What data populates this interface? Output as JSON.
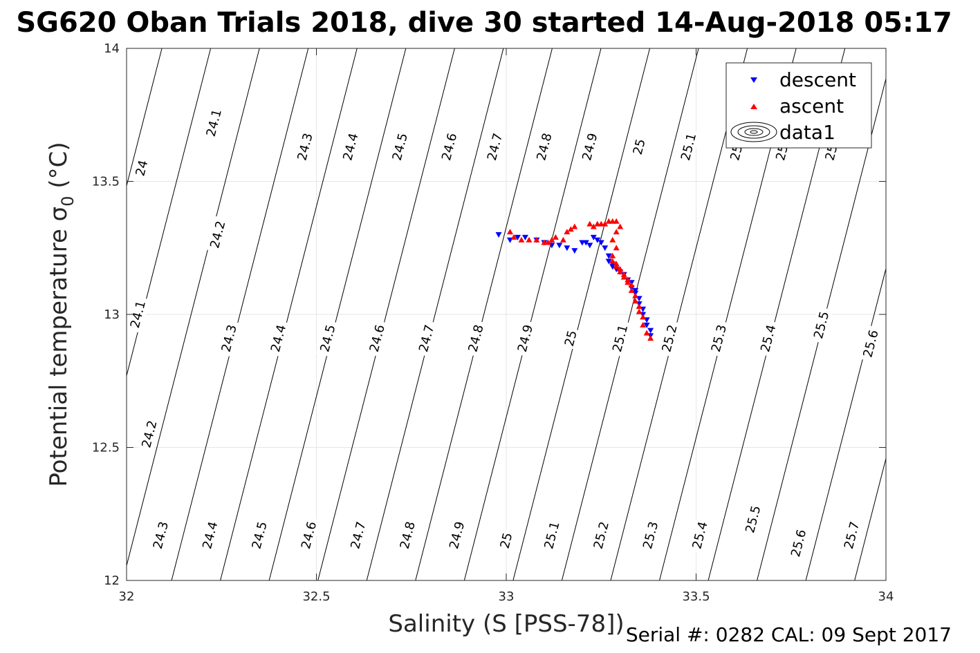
{
  "chart_data": {
    "type": "scatter",
    "title": "SG620 Oban Trials 2018, dive 30 started 14-Aug-2018 05:17",
    "xlabel": "Salinity (S [PSS-78])",
    "ylabel": "Potential temperature",
    "ylabel_symbol": "σ",
    "ylabel_subscript": "0",
    "ylabel_unit": "(°C)",
    "xlim": [
      32,
      34
    ],
    "ylim": [
      12,
      14
    ],
    "xticks": [
      "32",
      "32.5",
      "33",
      "33.5",
      "34"
    ],
    "yticks": [
      "12",
      "12.5",
      "13",
      "13.5",
      "14"
    ],
    "grid": true,
    "legend_position": "top-right",
    "series": [
      {
        "name": "descent",
        "marker": "triangle-down",
        "color": "#0000ff",
        "x": [
          32.98,
          33.01,
          33.03,
          33.05,
          33.08,
          33.1,
          33.12,
          33.14,
          33.16,
          33.18,
          33.2,
          33.21,
          33.22,
          33.23,
          33.24,
          33.25,
          33.26,
          33.27,
          33.27,
          33.28,
          33.28,
          33.29,
          33.3,
          33.31,
          33.32,
          33.33,
          33.33,
          33.34,
          33.34,
          33.35,
          33.35,
          33.36,
          33.36,
          33.37,
          33.37,
          33.38,
          33.38
        ],
        "y": [
          13.3,
          13.28,
          13.29,
          13.29,
          13.28,
          13.27,
          13.26,
          13.26,
          13.25,
          13.24,
          13.27,
          13.27,
          13.26,
          13.29,
          13.28,
          13.27,
          13.25,
          13.22,
          13.2,
          13.19,
          13.18,
          13.17,
          13.16,
          13.15,
          13.13,
          13.12,
          13.1,
          13.09,
          13.08,
          13.06,
          13.04,
          13.02,
          13.0,
          12.98,
          12.96,
          12.94,
          12.92
        ]
      },
      {
        "name": "ascent",
        "marker": "triangle-up",
        "color": "#ff0000",
        "x": [
          33.38,
          33.37,
          33.36,
          33.36,
          33.35,
          33.35,
          33.34,
          33.34,
          33.33,
          33.33,
          33.32,
          33.32,
          33.31,
          33.31,
          33.3,
          33.3,
          33.29,
          33.29,
          33.28,
          33.28,
          33.29,
          33.28,
          33.29,
          33.3,
          33.29,
          33.28,
          33.27,
          33.26,
          33.25,
          33.24,
          33.23,
          33.22,
          33.18,
          33.17,
          33.16,
          33.15,
          33.13,
          33.12,
          33.11,
          33.1,
          33.08,
          33.06,
          33.04,
          33.02,
          33.01
        ],
        "y": [
          12.91,
          12.93,
          12.96,
          12.99,
          13.01,
          13.03,
          13.05,
          13.07,
          13.09,
          13.11,
          13.12,
          13.13,
          13.14,
          13.15,
          13.16,
          13.17,
          13.18,
          13.19,
          13.2,
          13.22,
          13.25,
          13.28,
          13.31,
          13.33,
          13.35,
          13.35,
          13.35,
          13.34,
          13.34,
          13.34,
          13.33,
          13.34,
          13.33,
          13.32,
          13.31,
          13.28,
          13.29,
          13.28,
          13.27,
          13.27,
          13.28,
          13.28,
          13.28,
          13.29,
          13.31
        ]
      }
    ],
    "contour_series_name": "data1",
    "contour_labels": [
      {
        "text": "24",
        "x": 32.04,
        "y": 13.55
      },
      {
        "text": "24.1",
        "x": 32.23,
        "y": 13.72
      },
      {
        "text": "24.3",
        "x": 32.47,
        "y": 13.63
      },
      {
        "text": "24.4",
        "x": 32.59,
        "y": 13.63
      },
      {
        "text": "24.5",
        "x": 32.72,
        "y": 13.63
      },
      {
        "text": "24.6",
        "x": 32.85,
        "y": 13.63
      },
      {
        "text": "24.7",
        "x": 32.97,
        "y": 13.63
      },
      {
        "text": "24.8",
        "x": 33.1,
        "y": 13.63
      },
      {
        "text": "24.9",
        "x": 33.22,
        "y": 13.63
      },
      {
        "text": "25",
        "x": 33.35,
        "y": 13.63
      },
      {
        "text": "25.1",
        "x": 33.48,
        "y": 13.63
      },
      {
        "text": "25.2",
        "x": 33.61,
        "y": 13.63
      },
      {
        "text": "25.3",
        "x": 33.73,
        "y": 13.63
      },
      {
        "text": "25.4",
        "x": 33.86,
        "y": 13.63
      },
      {
        "text": "24.2",
        "x": 32.24,
        "y": 13.3
      },
      {
        "text": "24.1",
        "x": 32.03,
        "y": 13.0
      },
      {
        "text": "24.3",
        "x": 32.27,
        "y": 12.91
      },
      {
        "text": "24.4",
        "x": 32.4,
        "y": 12.91
      },
      {
        "text": "24.5",
        "x": 32.53,
        "y": 12.91
      },
      {
        "text": "24.6",
        "x": 32.66,
        "y": 12.91
      },
      {
        "text": "24.7",
        "x": 32.79,
        "y": 12.91
      },
      {
        "text": "24.8",
        "x": 32.92,
        "y": 12.91
      },
      {
        "text": "24.9",
        "x": 33.05,
        "y": 12.91
      },
      {
        "text": "25",
        "x": 33.17,
        "y": 12.91
      },
      {
        "text": "25.1",
        "x": 33.3,
        "y": 12.91
      },
      {
        "text": "25.2",
        "x": 33.43,
        "y": 12.91
      },
      {
        "text": "25.3",
        "x": 33.56,
        "y": 12.91
      },
      {
        "text": "25.4",
        "x": 33.69,
        "y": 12.91
      },
      {
        "text": "25.5",
        "x": 33.83,
        "y": 12.96
      },
      {
        "text": "25.6",
        "x": 33.96,
        "y": 12.89
      },
      {
        "text": "24.2",
        "x": 32.06,
        "y": 12.55
      },
      {
        "text": "24.3",
        "x": 32.09,
        "y": 12.17
      },
      {
        "text": "24.4",
        "x": 32.22,
        "y": 12.17
      },
      {
        "text": "24.5",
        "x": 32.35,
        "y": 12.17
      },
      {
        "text": "24.6",
        "x": 32.48,
        "y": 12.17
      },
      {
        "text": "24.7",
        "x": 32.61,
        "y": 12.17
      },
      {
        "text": "24.8",
        "x": 32.74,
        "y": 12.17
      },
      {
        "text": "24.9",
        "x": 32.87,
        "y": 12.17
      },
      {
        "text": "25",
        "x": 33.0,
        "y": 12.15
      },
      {
        "text": "25.1",
        "x": 33.12,
        "y": 12.17
      },
      {
        "text": "25.2",
        "x": 33.25,
        "y": 12.17
      },
      {
        "text": "25.3",
        "x": 33.38,
        "y": 12.17
      },
      {
        "text": "25.4",
        "x": 33.51,
        "y": 12.17
      },
      {
        "text": "25.5",
        "x": 33.65,
        "y": 12.23
      },
      {
        "text": "25.6",
        "x": 33.77,
        "y": 12.14
      },
      {
        "text": "25.7",
        "x": 33.91,
        "y": 12.17
      }
    ]
  },
  "legend": {
    "entries": [
      "descent",
      "ascent",
      "data1"
    ]
  },
  "footer": {
    "text": "Serial #: 0282  CAL: 09 Sept 2017"
  }
}
